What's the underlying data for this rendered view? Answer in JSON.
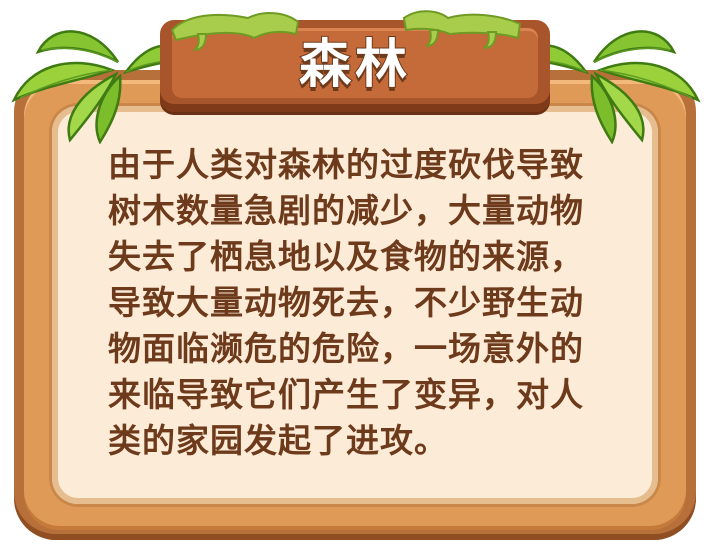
{
  "title": "森林",
  "body_lines": [
    "由于人类对森林的过度砍伐导致",
    "树木数量急剧的减少，大量动物",
    "失去了栖息地以及食物的来源，",
    "导致大量动物死去，不少野生动",
    "物面临濒危的危险，一场意外的",
    "来临导致它们产生了变异，对人",
    "类的家园发起了进攻。"
  ],
  "colors": {
    "frame_dark": "#b8703a",
    "frame_light": "#e09a58",
    "panel_bg": "#fcebd6",
    "text": "#6e3a1c",
    "plank": "#c56a39",
    "leaf": "#7fbf2a",
    "moss": "#a6c84a"
  },
  "icons": [
    "leaf-cluster-left-icon",
    "leaf-cluster-right-icon",
    "moss-icon"
  ]
}
